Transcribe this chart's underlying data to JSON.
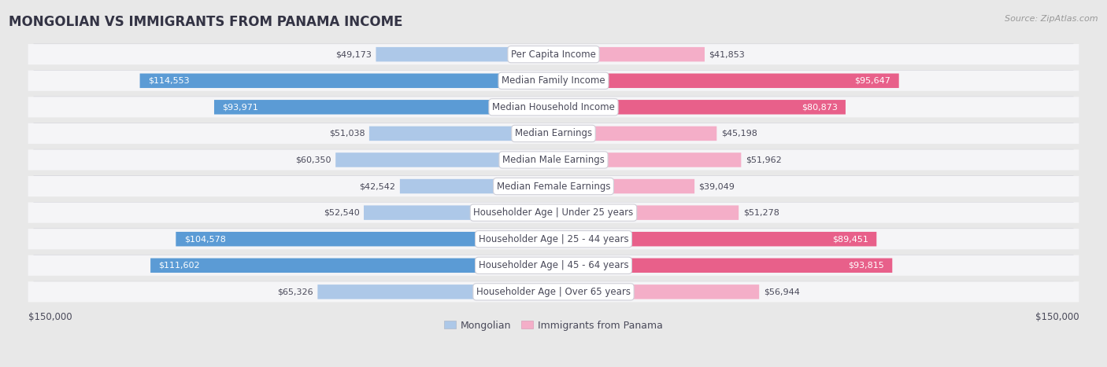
{
  "title": "MONGOLIAN VS IMMIGRANTS FROM PANAMA INCOME",
  "source": "Source: ZipAtlas.com",
  "categories": [
    "Per Capita Income",
    "Median Family Income",
    "Median Household Income",
    "Median Earnings",
    "Median Male Earnings",
    "Median Female Earnings",
    "Householder Age | Under 25 years",
    "Householder Age | 25 - 44 years",
    "Householder Age | 45 - 64 years",
    "Householder Age | Over 65 years"
  ],
  "mongolian_values": [
    49173,
    114553,
    93971,
    51038,
    60350,
    42542,
    52540,
    104578,
    111602,
    65326
  ],
  "panama_values": [
    41853,
    95647,
    80873,
    45198,
    51962,
    39049,
    51278,
    89451,
    93815,
    56944
  ],
  "max_val": 150000,
  "mongolian_color_light": "#adc8e8",
  "mongolian_color_dark": "#5b9bd5",
  "panama_color_light": "#f4aec8",
  "panama_color_dark": "#e8608a",
  "bg_color": "#e8e8e8",
  "row_color": "#f5f5f7",
  "row_shadow_color": "#d0d0d8",
  "label_color": "#4a4a5a",
  "mongolian_threshold": 80000,
  "panama_threshold": 80000,
  "legend_mongolian": "Mongolian",
  "legend_panama": "Immigrants from Panama",
  "left_axis_label": "$150,000",
  "right_axis_label": "$150,000",
  "title_color": "#333344",
  "source_color": "#999999"
}
